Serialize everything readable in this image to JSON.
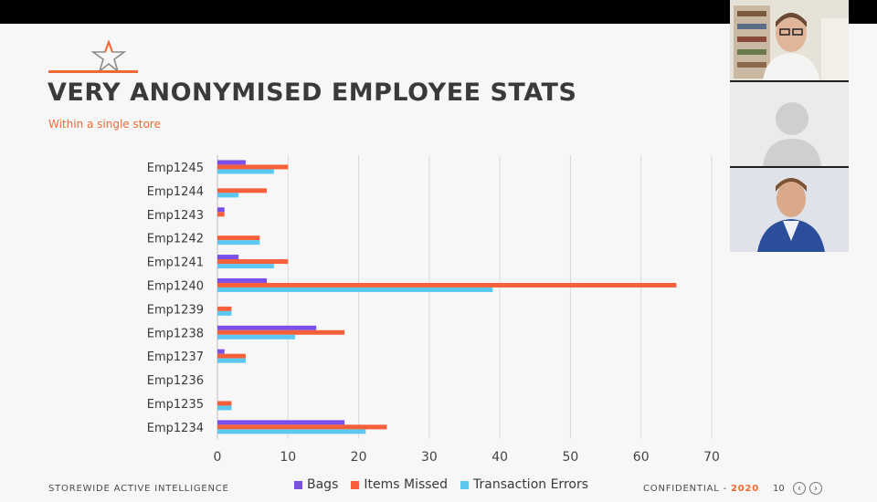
{
  "slide": {
    "title": "VERY ANONYMISED EMPLOYEE STATS",
    "subtitle": "Within a single store",
    "footer_company": "STOREWIDE ACTIVE INTELLIGENCE",
    "footer_confidential": "CONFIDENTIAL - ",
    "footer_year": "2020",
    "page_number": "10",
    "prev_glyph": "‹",
    "next_glyph": "›"
  },
  "colors": {
    "accent": "#f06a35",
    "bags": "#7a4fea",
    "items_missed": "#f5603a",
    "transaction_errors": "#5ac8f0"
  },
  "chart_data": {
    "type": "bar",
    "orientation": "horizontal",
    "title": "",
    "xlabel": "",
    "ylabel": "",
    "xlim": [
      0,
      70
    ],
    "xticks": [
      0,
      10,
      20,
      30,
      40,
      50,
      60,
      70
    ],
    "grid": true,
    "legend_position": "bottom",
    "categories": [
      "Emp1245",
      "Emp1244",
      "Emp1243",
      "Emp1242",
      "Emp1241",
      "Emp1240",
      "Emp1239",
      "Emp1238",
      "Emp1237",
      "Emp1236",
      "Emp1235",
      "Emp1234"
    ],
    "series": [
      {
        "name": "Bags",
        "color": "#7a4fea",
        "values": [
          4,
          0,
          1,
          0,
          3,
          7,
          0,
          14,
          1,
          0,
          0,
          18
        ]
      },
      {
        "name": "Items Missed",
        "color": "#f5603a",
        "values": [
          10,
          7,
          1,
          6,
          10,
          65,
          2,
          18,
          4,
          0,
          2,
          24
        ]
      },
      {
        "name": "Transaction Errors",
        "color": "#5ac8f0",
        "values": [
          8,
          3,
          0,
          6,
          8,
          39,
          2,
          11,
          4,
          0,
          2,
          21
        ]
      }
    ]
  },
  "video_tiles": [
    {
      "label": "participant-1-video"
    },
    {
      "label": "participant-2-avatar"
    },
    {
      "label": "participant-3-video"
    }
  ]
}
